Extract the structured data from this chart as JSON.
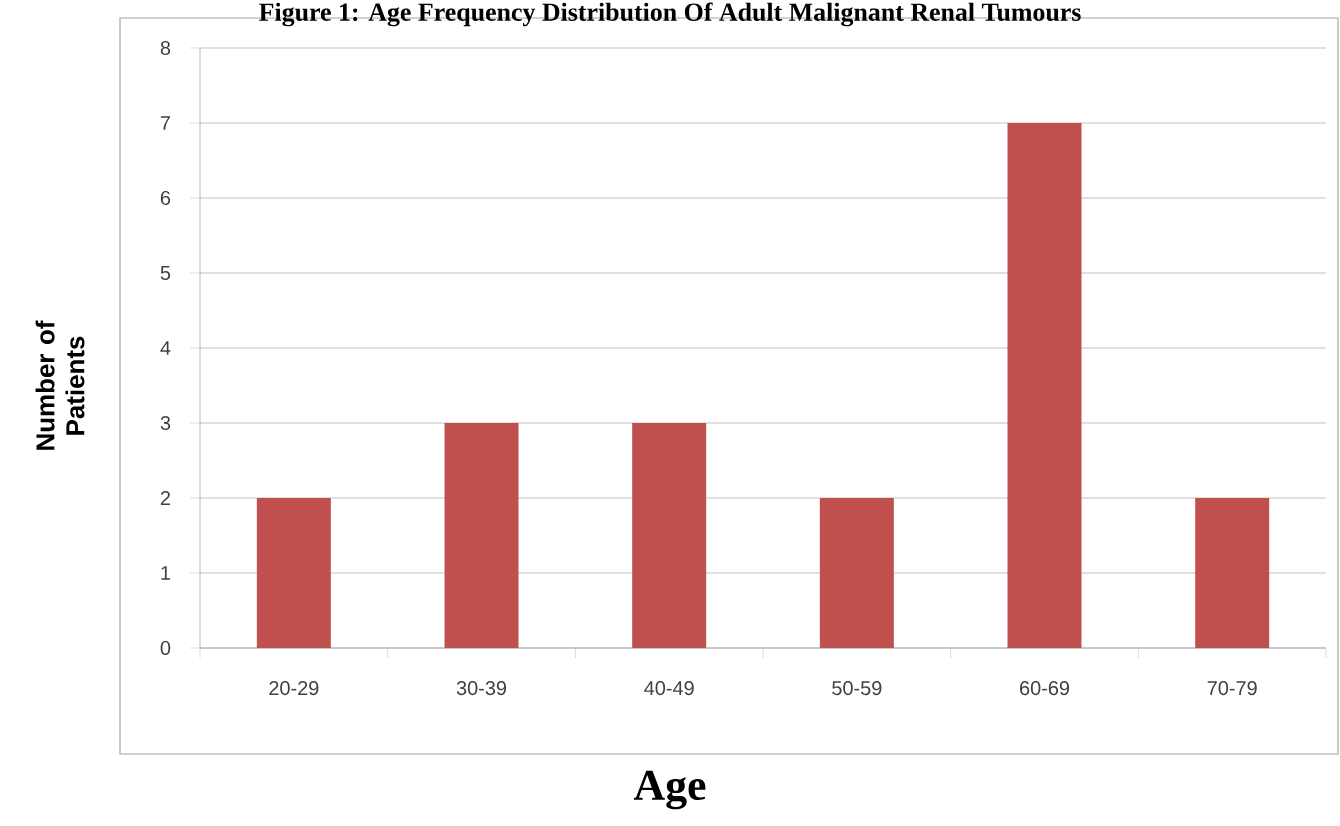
{
  "chart_data": {
    "type": "bar",
    "title": "Figure 1: Age Frequency Distribution Of Adult Malignant  Renal Tumours",
    "xlabel": "Age",
    "ylabel": "Number of Patients",
    "categories": [
      "20-29",
      "30-39",
      "40-49",
      "50-59",
      "60-69",
      "70-79"
    ],
    "values": [
      2,
      3,
      3,
      2,
      7,
      2
    ],
    "color": "#c0504d",
    "ylim": [
      0,
      8
    ],
    "yticks": [
      0,
      1,
      2,
      3,
      4,
      5,
      6,
      7,
      8
    ],
    "grid": "y"
  }
}
